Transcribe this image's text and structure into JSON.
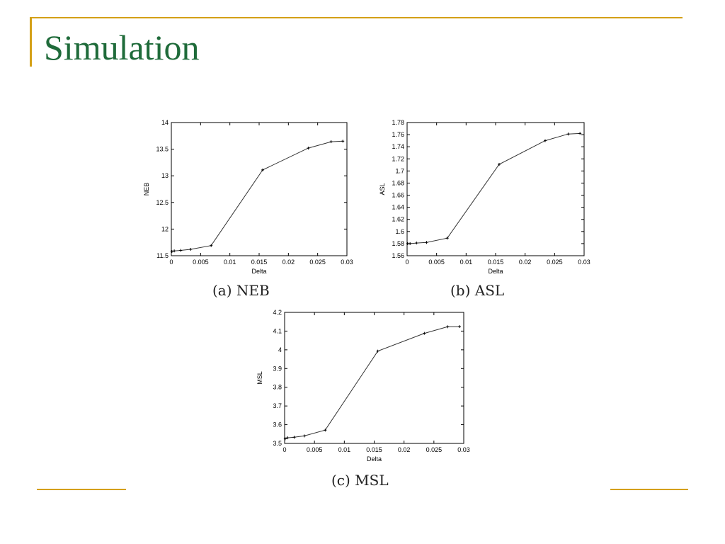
{
  "slide": {
    "title": "Simulation"
  },
  "colors": {
    "title": "#1f6b3a",
    "accent": "#d4a017",
    "line": "#333333"
  },
  "chart_data": [
    {
      "id": "neb",
      "type": "line",
      "caption": "(a) NEB",
      "xlabel": "Delta",
      "ylabel": "NEB",
      "xlim": [
        0,
        0.03
      ],
      "ylim": [
        11.5,
        14
      ],
      "xticks": [
        0,
        0.005,
        0.01,
        0.015,
        0.02,
        0.025,
        0.03
      ],
      "yticks": [
        11.5,
        12,
        12.5,
        13,
        13.5,
        14
      ],
      "xticklabels": [
        "0",
        "0.005",
        "0.01",
        "0.015",
        "0.02",
        "0.025",
        "0.03"
      ],
      "yticklabels": [
        "11.5",
        "12",
        "12.5",
        "13",
        "13.5",
        "14"
      ],
      "x": [
        0.0001,
        0.0005,
        0.0016,
        0.0033,
        0.0068,
        0.0156,
        0.0234,
        0.0273,
        0.0293
      ],
      "y": [
        11.58,
        11.59,
        11.6,
        11.62,
        11.69,
        13.11,
        13.52,
        13.64,
        13.65
      ]
    },
    {
      "id": "asl",
      "type": "line",
      "caption": "(b) ASL",
      "xlabel": "Delta",
      "ylabel": "ASL",
      "xlim": [
        0,
        0.03
      ],
      "ylim": [
        1.56,
        1.78
      ],
      "xticks": [
        0,
        0.005,
        0.01,
        0.015,
        0.02,
        0.025,
        0.03
      ],
      "yticks": [
        1.56,
        1.58,
        1.6,
        1.62,
        1.64,
        1.66,
        1.68,
        1.7,
        1.72,
        1.74,
        1.76,
        1.78
      ],
      "xticklabels": [
        "0",
        "0.005",
        "0.01",
        "0.015",
        "0.02",
        "0.025",
        "0.03"
      ],
      "yticklabels": [
        "1.56",
        "1.58",
        "1.6",
        "1.62",
        "1.64",
        "1.66",
        "1.68",
        "1.7",
        "1.72",
        "1.74",
        "1.76",
        "1.78"
      ],
      "x": [
        0.0001,
        0.0005,
        0.0016,
        0.0033,
        0.0068,
        0.0156,
        0.0234,
        0.0273,
        0.0293
      ],
      "y": [
        1.58,
        1.58,
        1.581,
        1.582,
        1.589,
        1.711,
        1.75,
        1.761,
        1.762
      ]
    },
    {
      "id": "msl",
      "type": "line",
      "caption": "(c) MSL",
      "xlabel": "Delta",
      "ylabel": "MSL",
      "xlim": [
        0,
        0.03
      ],
      "ylim": [
        3.5,
        4.2
      ],
      "xticks": [
        0,
        0.005,
        0.01,
        0.015,
        0.02,
        0.025,
        0.03
      ],
      "yticks": [
        3.5,
        3.6,
        3.7,
        3.8,
        3.9,
        4,
        4.1,
        4.2
      ],
      "xticklabels": [
        "0",
        "0.005",
        "0.01",
        "0.015",
        "0.02",
        "0.025",
        "0.03"
      ],
      "yticklabels": [
        "3.5",
        "3.6",
        "3.7",
        "3.8",
        "3.9",
        "4",
        "4.1",
        "4.2"
      ],
      "x": [
        0.0001,
        0.0005,
        0.0016,
        0.0033,
        0.0068,
        0.0156,
        0.0234,
        0.0273,
        0.0293
      ],
      "y": [
        3.525,
        3.53,
        3.533,
        3.54,
        3.571,
        3.993,
        4.088,
        4.123,
        4.124
      ]
    }
  ]
}
